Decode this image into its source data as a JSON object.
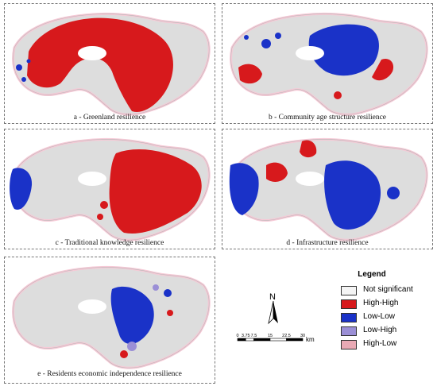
{
  "panels": [
    {
      "id": "a",
      "caption": "a - Greenland resilience"
    },
    {
      "id": "b",
      "caption": "b - Community age structure resilience"
    },
    {
      "id": "c",
      "caption": "c - Traditional knowledge resilience"
    },
    {
      "id": "d",
      "caption": "d - Infrastructure resilience"
    },
    {
      "id": "e",
      "caption": "e - Residents economic independence resilience"
    }
  ],
  "legend": {
    "title": "Legend",
    "items": [
      {
        "label": "Not significant",
        "color": "#f4f4f4"
      },
      {
        "label": "High-High",
        "color": "#d7191c"
      },
      {
        "label": "Low-Low",
        "color": "#1a32c8"
      },
      {
        "label": "Low-High",
        "color": "#9b8fd6"
      },
      {
        "label": "High-Low",
        "color": "#e9a9b4"
      }
    ]
  },
  "north_arrow": {
    "label": "N"
  },
  "scale_bar": {
    "ticks": [
      "0",
      "3.75",
      "7.5",
      "15",
      "22.5",
      "30"
    ],
    "unit": "km"
  },
  "colors": {
    "region_fill": "#dddddd",
    "region_stroke": "#b8b8b8",
    "border_halo": "#f6c9d6",
    "boundary_brown": "#8b4a2b"
  }
}
